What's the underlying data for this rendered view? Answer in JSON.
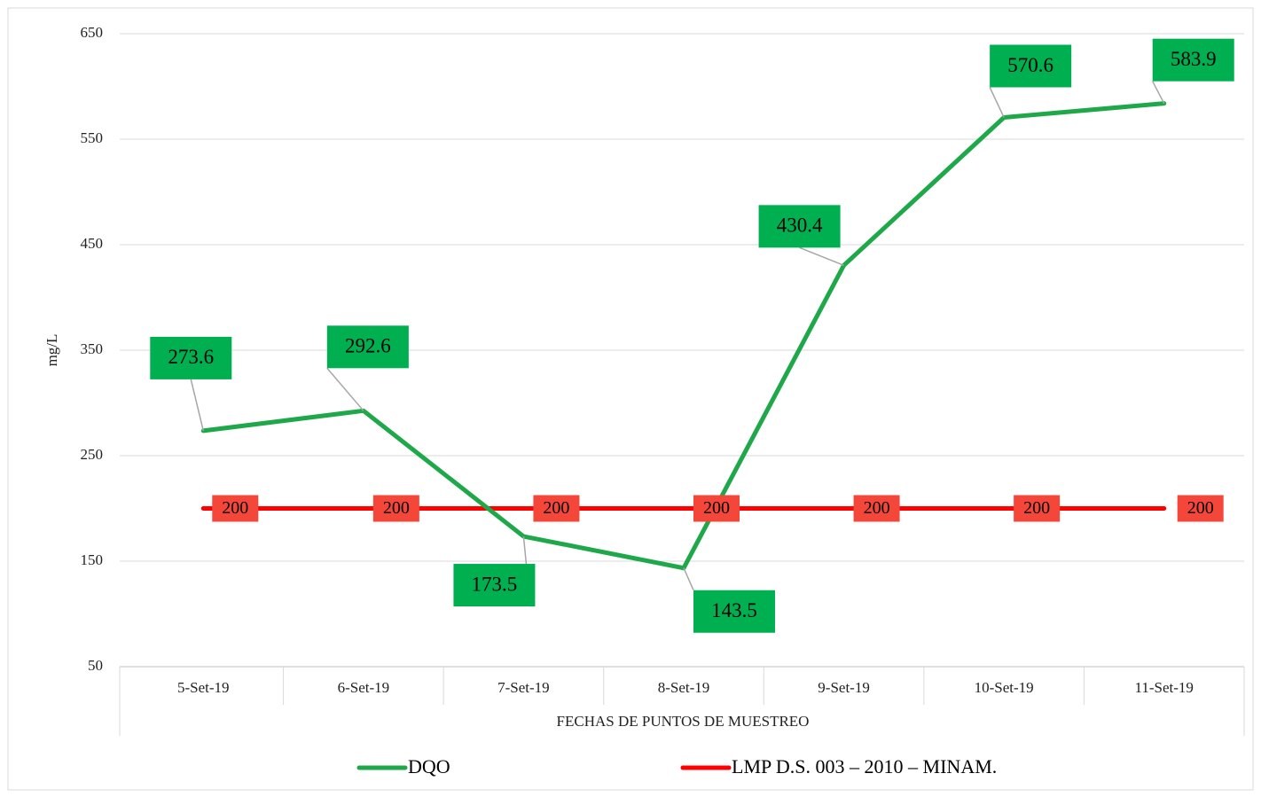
{
  "chart_data": {
    "type": "line",
    "x_label": "FECHAS DE PUNTOS DE MUESTREO",
    "y_label": "mg/L",
    "categories": [
      "5-Set-19",
      "6-Set-19",
      "7-Set-19",
      "8-Set-19",
      "9-Set-19",
      "10-Set-19",
      "11-Set-19"
    ],
    "series": [
      {
        "name": "DQO",
        "color": "#1fa84a",
        "label_color": "#00b050",
        "values": [
          273.6,
          292.6,
          173.5,
          143.5,
          430.4,
          570.6,
          583.9
        ]
      },
      {
        "name": "LMP D.S. 003 – 2010 – MINAM.",
        "color": "#ff0000",
        "label_color": "#f4473a",
        "values": [
          200,
          200,
          200,
          200,
          200,
          200,
          200
        ]
      }
    ],
    "ylim": [
      50,
      650
    ],
    "yticks": [
      50,
      150,
      250,
      350,
      450,
      550,
      650
    ],
    "grid": true,
    "legend": "bottom"
  }
}
